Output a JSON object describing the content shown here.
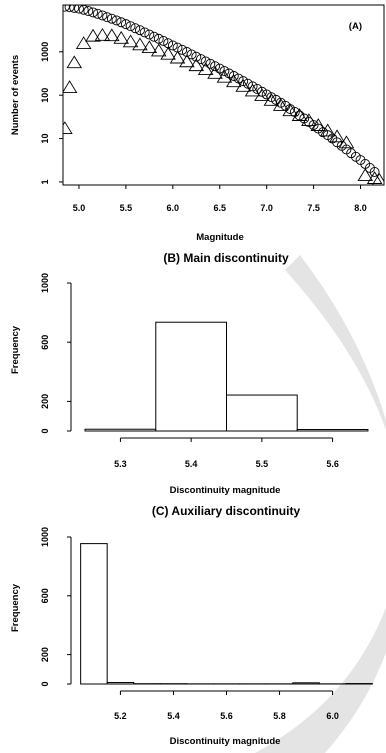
{
  "chart_data": [
    {
      "type": "scatter",
      "panel_label": "(A)",
      "xlabel": "Magnitude",
      "ylabel": "Number of events",
      "log_y": true,
      "xlim": [
        4.83,
        8.25
      ],
      "ylim": [
        0.85,
        12000
      ],
      "xticks": [
        "5.0",
        "5.5",
        "6.0",
        "6.5",
        "7.0",
        "7.5",
        "8.0"
      ],
      "yticks": [
        "1",
        "10",
        "100",
        "1000"
      ],
      "series": [
        {
          "marker": "circle",
          "x": [
            4.85,
            4.9,
            4.95,
            5.0,
            5.05,
            5.1,
            5.15,
            5.2,
            5.25,
            5.3,
            5.35,
            5.4,
            5.45,
            5.5,
            5.55,
            5.6,
            5.65,
            5.7,
            5.75,
            5.8,
            5.85,
            5.9,
            5.95,
            6.0,
            6.05,
            6.1,
            6.15,
            6.2,
            6.25,
            6.3,
            6.35,
            6.4,
            6.45,
            6.5,
            6.55,
            6.6,
            6.65,
            6.7,
            6.75,
            6.8,
            6.85,
            6.9,
            6.95,
            7.0,
            7.05,
            7.1,
            7.15,
            7.2,
            7.25,
            7.3,
            7.35,
            7.4,
            7.45,
            7.5,
            7.55,
            7.6,
            7.65,
            7.7,
            7.75,
            7.8,
            7.85,
            7.9,
            7.95,
            8.0,
            8.05,
            8.1,
            8.15
          ],
          "y": [
            11000,
            10700,
            10300,
            9900,
            9300,
            8700,
            8100,
            7500,
            6900,
            6300,
            5800,
            5300,
            4800,
            4350,
            3900,
            3500,
            3150,
            2800,
            2500,
            2230,
            2000,
            1780,
            1580,
            1400,
            1250,
            1110,
            990,
            870,
            770,
            680,
            600,
            530,
            465,
            410,
            360,
            316,
            277,
            242,
            211,
            184,
            160,
            139,
            120,
            104,
            90,
            78,
            67,
            57,
            48,
            41,
            34,
            29,
            24,
            20.5,
            17,
            14,
            12,
            10,
            8.2,
            6.8,
            5.6,
            4.6,
            3.8,
            3.2,
            2.6,
            2.1,
            1.7
          ]
        },
        {
          "marker": "triangle",
          "x": [
            4.85,
            4.9,
            4.95,
            5.05,
            5.15,
            5.25,
            5.35,
            5.45,
            5.55,
            5.65,
            5.75,
            5.85,
            5.95,
            6.05,
            6.15,
            6.25,
            6.35,
            6.45,
            6.55,
            6.65,
            6.75,
            6.85,
            6.95,
            7.05,
            7.15,
            7.25,
            7.35,
            7.45,
            7.55,
            7.65,
            7.75,
            7.85,
            8.05,
            8.15,
            8.2
          ],
          "y": [
            17,
            150,
            560,
            1550,
            2300,
            2400,
            2350,
            2050,
            1700,
            1450,
            1250,
            1050,
            880,
            720,
            590,
            480,
            390,
            320,
            260,
            205,
            160,
            125,
            98,
            76,
            58,
            44,
            34,
            26,
            20,
            15,
            11,
            8,
            1.4,
            1.2,
            1.1
          ]
        }
      ]
    },
    {
      "type": "bar",
      "title": "(B) Main discontinuity",
      "xlabel": "Discontinuity magnitude",
      "ylabel": "Frequency",
      "xlim": [
        5.24,
        5.66
      ],
      "ylim": [
        0,
        1000
      ],
      "xticks": [
        "5.3",
        "5.4",
        "5.5",
        "5.6"
      ],
      "yticks": [
        "0",
        "200",
        "600",
        "1000"
      ],
      "bins": [
        [
          5.25,
          5.35
        ],
        [
          5.35,
          5.45
        ],
        [
          5.45,
          5.55
        ],
        [
          5.55,
          5.65
        ]
      ],
      "values": [
        12,
        735,
        243,
        10
      ]
    },
    {
      "type": "bar",
      "title": "(C) Auxiliary discontinuity",
      "xlabel": "Discontinuity magnitude",
      "ylabel": "Frequency",
      "xlim": [
        5.04,
        6.16
      ],
      "ylim": [
        0,
        1000
      ],
      "xticks": [
        "5.2",
        "5.4",
        "5.6",
        "5.8",
        "6.0"
      ],
      "yticks": [
        "0",
        "200",
        "600",
        "1000"
      ],
      "bins": [
        [
          5.05,
          5.15
        ],
        [
          5.15,
          5.25
        ],
        [
          5.25,
          5.35
        ],
        [
          5.35,
          5.45
        ],
        [
          5.45,
          5.55
        ],
        [
          5.55,
          5.65
        ],
        [
          5.65,
          5.75
        ],
        [
          5.75,
          5.85
        ],
        [
          5.85,
          5.95
        ],
        [
          5.95,
          6.05
        ],
        [
          6.05,
          6.15
        ]
      ],
      "values": [
        955,
        10,
        2,
        2,
        1,
        1,
        1,
        1,
        8,
        1,
        3
      ]
    }
  ]
}
